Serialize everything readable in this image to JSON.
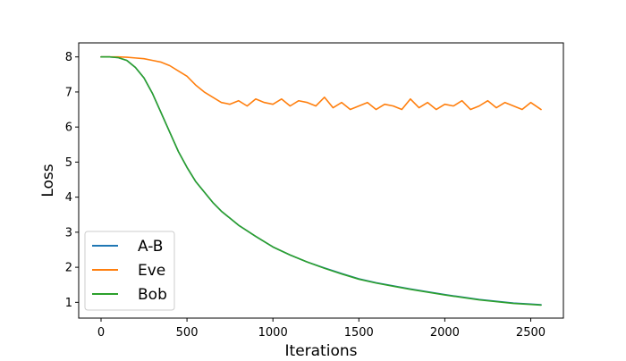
{
  "chart_data": {
    "type": "line",
    "title": "",
    "xlabel": "Iterations",
    "ylabel": "Loss",
    "xlim": [
      -130,
      2690
    ],
    "ylim": [
      0.55,
      8.4
    ],
    "xticks": [
      0,
      500,
      1000,
      1500,
      2000,
      2500
    ],
    "yticks": [
      1,
      2,
      3,
      4,
      5,
      6,
      7,
      8
    ],
    "grid": false,
    "legend_position": "lower-left",
    "series": [
      {
        "name": "A-B",
        "color": "#1f77b4",
        "x": [
          0,
          50,
          100,
          150,
          200,
          250,
          300,
          350,
          400,
          450,
          500,
          550,
          600,
          650,
          700,
          750,
          800,
          900,
          1000,
          1100,
          1200,
          1300,
          1400,
          1500,
          1600,
          1700,
          1800,
          1900,
          2000,
          2100,
          2200,
          2300,
          2400,
          2500,
          2560
        ],
        "values": [
          8.0,
          8.0,
          7.98,
          7.9,
          7.7,
          7.4,
          6.95,
          6.4,
          5.85,
          5.3,
          4.85,
          4.45,
          4.15,
          3.85,
          3.6,
          3.4,
          3.2,
          2.88,
          2.58,
          2.35,
          2.15,
          1.98,
          1.82,
          1.67,
          1.56,
          1.47,
          1.38,
          1.3,
          1.22,
          1.15,
          1.08,
          1.03,
          0.98,
          0.95,
          0.93
        ]
      },
      {
        "name": "Eve",
        "color": "#ff7f0e",
        "x": [
          0,
          50,
          100,
          150,
          200,
          250,
          300,
          350,
          400,
          450,
          500,
          550,
          600,
          650,
          700,
          750,
          800,
          850,
          900,
          950,
          1000,
          1050,
          1100,
          1150,
          1200,
          1250,
          1300,
          1350,
          1400,
          1450,
          1500,
          1550,
          1600,
          1650,
          1700,
          1750,
          1800,
          1850,
          1900,
          1950,
          2000,
          2050,
          2100,
          2150,
          2200,
          2250,
          2300,
          2350,
          2400,
          2450,
          2500,
          2560
        ],
        "values": [
          8.0,
          8.0,
          8.0,
          7.99,
          7.97,
          7.95,
          7.9,
          7.85,
          7.75,
          7.6,
          7.45,
          7.2,
          7.0,
          6.85,
          6.7,
          6.65,
          6.75,
          6.6,
          6.8,
          6.7,
          6.65,
          6.8,
          6.6,
          6.75,
          6.7,
          6.6,
          6.85,
          6.55,
          6.7,
          6.5,
          6.6,
          6.7,
          6.5,
          6.65,
          6.6,
          6.5,
          6.8,
          6.55,
          6.7,
          6.5,
          6.65,
          6.6,
          6.75,
          6.5,
          6.6,
          6.75,
          6.55,
          6.7,
          6.6,
          6.5,
          6.7,
          6.5
        ]
      },
      {
        "name": "Bob",
        "color": "#2ca02c",
        "x": [
          0,
          50,
          100,
          150,
          200,
          250,
          300,
          350,
          400,
          450,
          500,
          550,
          600,
          650,
          700,
          750,
          800,
          900,
          1000,
          1100,
          1200,
          1300,
          1400,
          1500,
          1600,
          1700,
          1800,
          1900,
          2000,
          2100,
          2200,
          2300,
          2400,
          2500,
          2560
        ],
        "values": [
          8.0,
          8.0,
          7.98,
          7.9,
          7.7,
          7.4,
          6.95,
          6.4,
          5.85,
          5.3,
          4.85,
          4.45,
          4.15,
          3.85,
          3.6,
          3.4,
          3.2,
          2.88,
          2.58,
          2.35,
          2.15,
          1.97,
          1.81,
          1.66,
          1.55,
          1.46,
          1.37,
          1.29,
          1.21,
          1.14,
          1.07,
          1.02,
          0.97,
          0.94,
          0.92
        ]
      }
    ]
  }
}
